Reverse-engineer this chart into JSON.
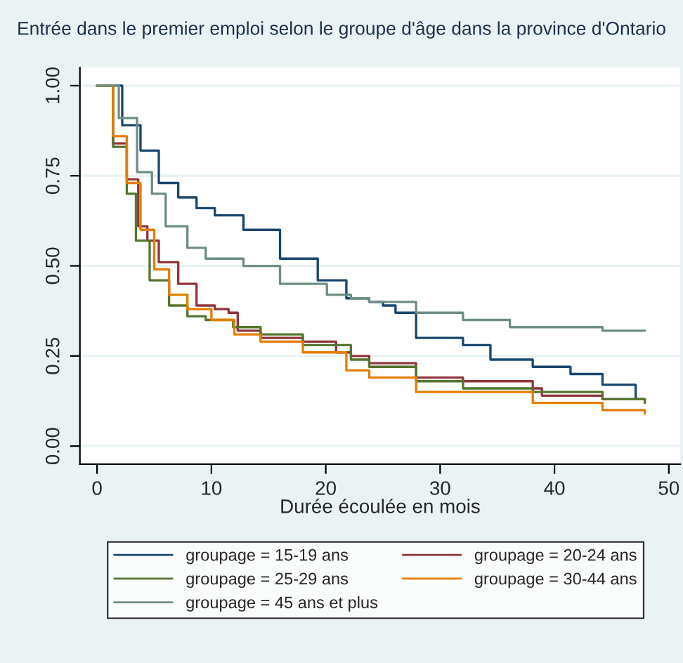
{
  "chart_data": {
    "type": "step",
    "title": "Entrée dans le premier emploi selon le groupe d'âge dans la province d'Ontario",
    "xlabel": "Durée écoulée en mois",
    "xlim": [
      -1.5,
      51
    ],
    "xticks": [
      0,
      10,
      20,
      30,
      40,
      50
    ],
    "ylim": [
      -0.05,
      1.05
    ],
    "yticks": [
      {
        "value": 0,
        "label": "0.00"
      },
      {
        "value": 0.25,
        "label": "0.25"
      },
      {
        "value": 0.5,
        "label": "0.50"
      },
      {
        "value": 0.75,
        "label": "0.75"
      },
      {
        "value": 1,
        "label": "1.00"
      }
    ],
    "grid": "y",
    "legend": "bottom",
    "marker": "none",
    "line_style": "solid",
    "series": [
      {
        "name": "groupage = 15-19 ans",
        "color": "#1a476f",
        "x": [
          0,
          0.2,
          2.2,
          3.8,
          5.4,
          7.1,
          8.7,
          10.3,
          12.8,
          16.0,
          19.3,
          21.8,
          23.8,
          25.0,
          26.1,
          27.9,
          32.0,
          34.4,
          38.1,
          41.4,
          44.2,
          47.1,
          47.9
        ],
        "values": [
          1,
          1,
          0.89,
          0.82,
          0.73,
          0.69,
          0.66,
          0.64,
          0.6,
          0.52,
          0.46,
          0.41,
          0.4,
          0.39,
          0.37,
          0.3,
          0.28,
          0.24,
          0.22,
          0.2,
          0.17,
          0.13,
          0.13
        ]
      },
      {
        "name": "groupage = 20-24 ans",
        "color": "#90353b",
        "x": [
          0,
          1.4,
          2.6,
          3.6,
          4.4,
          5.4,
          7.1,
          8.7,
          10.3,
          11.5,
          12.3,
          14.3,
          18.0,
          20.9,
          22.2,
          23.8,
          27.9,
          32.0,
          38.1,
          38.9,
          44.2,
          47.9
        ],
        "values": [
          1,
          0.84,
          0.74,
          0.61,
          0.57,
          0.51,
          0.45,
          0.39,
          0.38,
          0.37,
          0.32,
          0.3,
          0.29,
          0.26,
          0.25,
          0.23,
          0.19,
          0.18,
          0.16,
          0.14,
          0.13,
          0.13
        ]
      },
      {
        "name": "groupage = 25-29 ans",
        "color": "#55752f",
        "x": [
          0,
          1.4,
          2.6,
          3.4,
          4.6,
          6.3,
          7.9,
          9.5,
          11.9,
          14.3,
          18.0,
          22.2,
          23.8,
          27.9,
          32.0,
          38.1,
          44.2,
          47.9
        ],
        "values": [
          1,
          0.83,
          0.7,
          0.57,
          0.46,
          0.39,
          0.36,
          0.35,
          0.33,
          0.31,
          0.28,
          0.24,
          0.22,
          0.18,
          0.16,
          0.15,
          0.13,
          0.12
        ]
      },
      {
        "name": "groupage = 30-44 ans",
        "color": "#e37e00",
        "x": [
          0,
          1.4,
          2.6,
          3.8,
          5.0,
          6.3,
          7.9,
          10.0,
          12.0,
          14.3,
          18.0,
          21.8,
          23.8,
          27.9,
          32.0,
          38.1,
          44.2,
          47.9
        ],
        "values": [
          1,
          0.86,
          0.73,
          0.6,
          0.49,
          0.42,
          0.38,
          0.35,
          0.31,
          0.29,
          0.26,
          0.21,
          0.19,
          0.15,
          0.15,
          0.12,
          0.1,
          0.09
        ]
      },
      {
        "name": "groupage = 45 ans et plus",
        "color": "#6e8e84",
        "x": [
          0,
          1.9,
          3.5,
          4.8,
          6.0,
          7.9,
          9.5,
          12.8,
          16.0,
          20.1,
          22.2,
          23.8,
          27.9,
          32.0,
          36.1,
          40.2,
          44.2,
          47.9
        ],
        "values": [
          1,
          0.91,
          0.76,
          0.7,
          0.61,
          0.55,
          0.52,
          0.5,
          0.45,
          0.42,
          0.41,
          0.4,
          0.37,
          0.35,
          0.33,
          0.33,
          0.32,
          0.32
        ]
      }
    ]
  }
}
